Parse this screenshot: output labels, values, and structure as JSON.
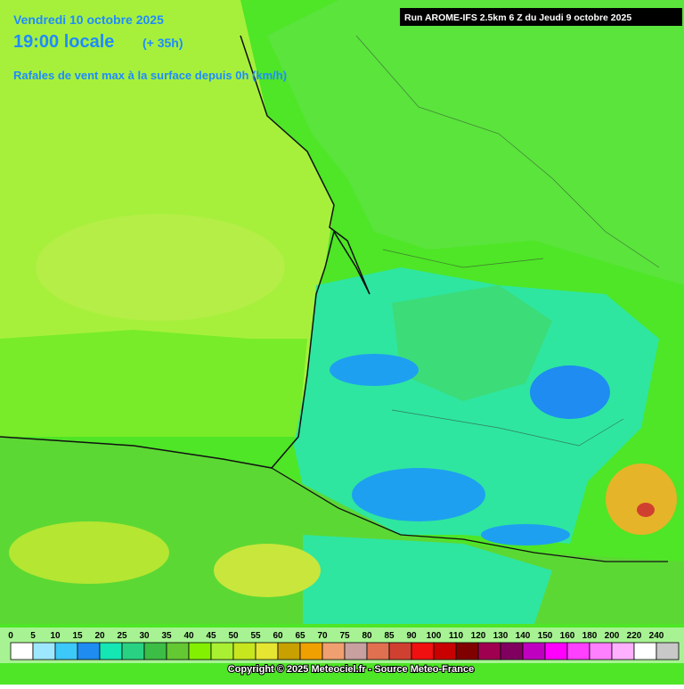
{
  "header": {
    "date": "Vendredi 10 octobre 2025",
    "time": "19:00 locale",
    "lead": "(+ 35h)",
    "run": "Run AROME-IFS 2.5km 6 Z du Jeudi 9 octobre 2025",
    "subtitle": "Rafales de vent max à la surface depuis 0h (km/h)"
  },
  "legend": {
    "ticks": [
      0,
      5,
      10,
      15,
      20,
      25,
      30,
      35,
      40,
      45,
      50,
      55,
      60,
      65,
      70,
      75,
      80,
      85,
      90,
      100,
      110,
      120,
      130,
      140,
      150,
      160,
      180,
      200,
      220,
      240
    ],
    "colors": [
      "#ffffff",
      "#9ee8ff",
      "#3cc8f8",
      "#1e8cf0",
      "#14e6b4",
      "#28d282",
      "#3cbe46",
      "#64c832",
      "#82f000",
      "#aaf032",
      "#c8e61e",
      "#e6e632",
      "#c8a000",
      "#f0a000",
      "#f0a070",
      "#c8a0a0",
      "#e07050",
      "#d04030",
      "#f01010",
      "#c80000",
      "#800000",
      "#a00050",
      "#800060",
      "#c000c0",
      "#ff00ff",
      "#ff40ff",
      "#ff80ff",
      "#ffb0ff",
      "#ffffff",
      "#c8c8c8"
    ]
  },
  "footer": {
    "copyright": "Copyright © 2025 Meteociel.fr - Source Meteo-France"
  }
}
